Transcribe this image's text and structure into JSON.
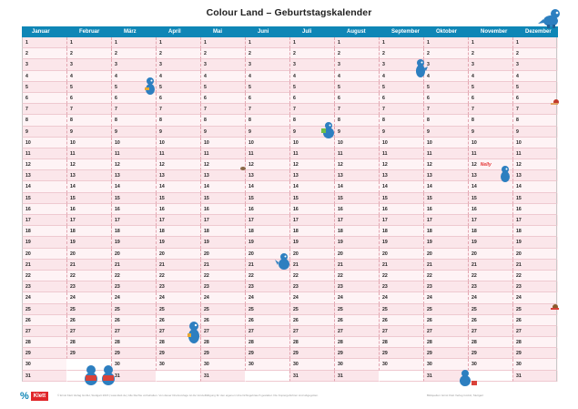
{
  "title": "Colour Land – Geburtstagskalender",
  "months": [
    {
      "name": "Januar",
      "days": 31
    },
    {
      "name": "Februar",
      "days": 29
    },
    {
      "name": "März",
      "days": 31
    },
    {
      "name": "April",
      "days": 30
    },
    {
      "name": "Mai",
      "days": 31
    },
    {
      "name": "Juni",
      "days": 30
    },
    {
      "name": "Juli",
      "days": 31
    },
    {
      "name": "August",
      "days": 31
    },
    {
      "name": "September",
      "days": 30
    },
    {
      "name": "Oktober",
      "days": 31
    },
    {
      "name": "November",
      "days": 30
    },
    {
      "name": "Dezember",
      "days": 31
    }
  ],
  "entries": [
    {
      "month_index": 10,
      "day": 12,
      "text": "Nelly"
    }
  ],
  "footer": {
    "left": "© Ernst Klett Verlag GmbH, Stuttgart 2015 | www.klett.de | Alle Rechte vorbehalten. Von dieser Druckvorlage ist die Vervielfältigung für den eigenen Unterrichtsgebrauch gestattet. Die Kopiergebühren sind abgegolten.",
    "right": "Bildquellen: Ernst Klett Verlag GmbH, Stuttgart",
    "logo_mark": "%",
    "logo_text": "Klett"
  },
  "colors": {
    "header": "#0f86b6",
    "row_odd": "#fbe6ea",
    "row_even": "#fef3f5",
    "mascot": "#2d7fc0",
    "note": "#e33030"
  },
  "mascot_icon": "dragon-mascot-icon"
}
